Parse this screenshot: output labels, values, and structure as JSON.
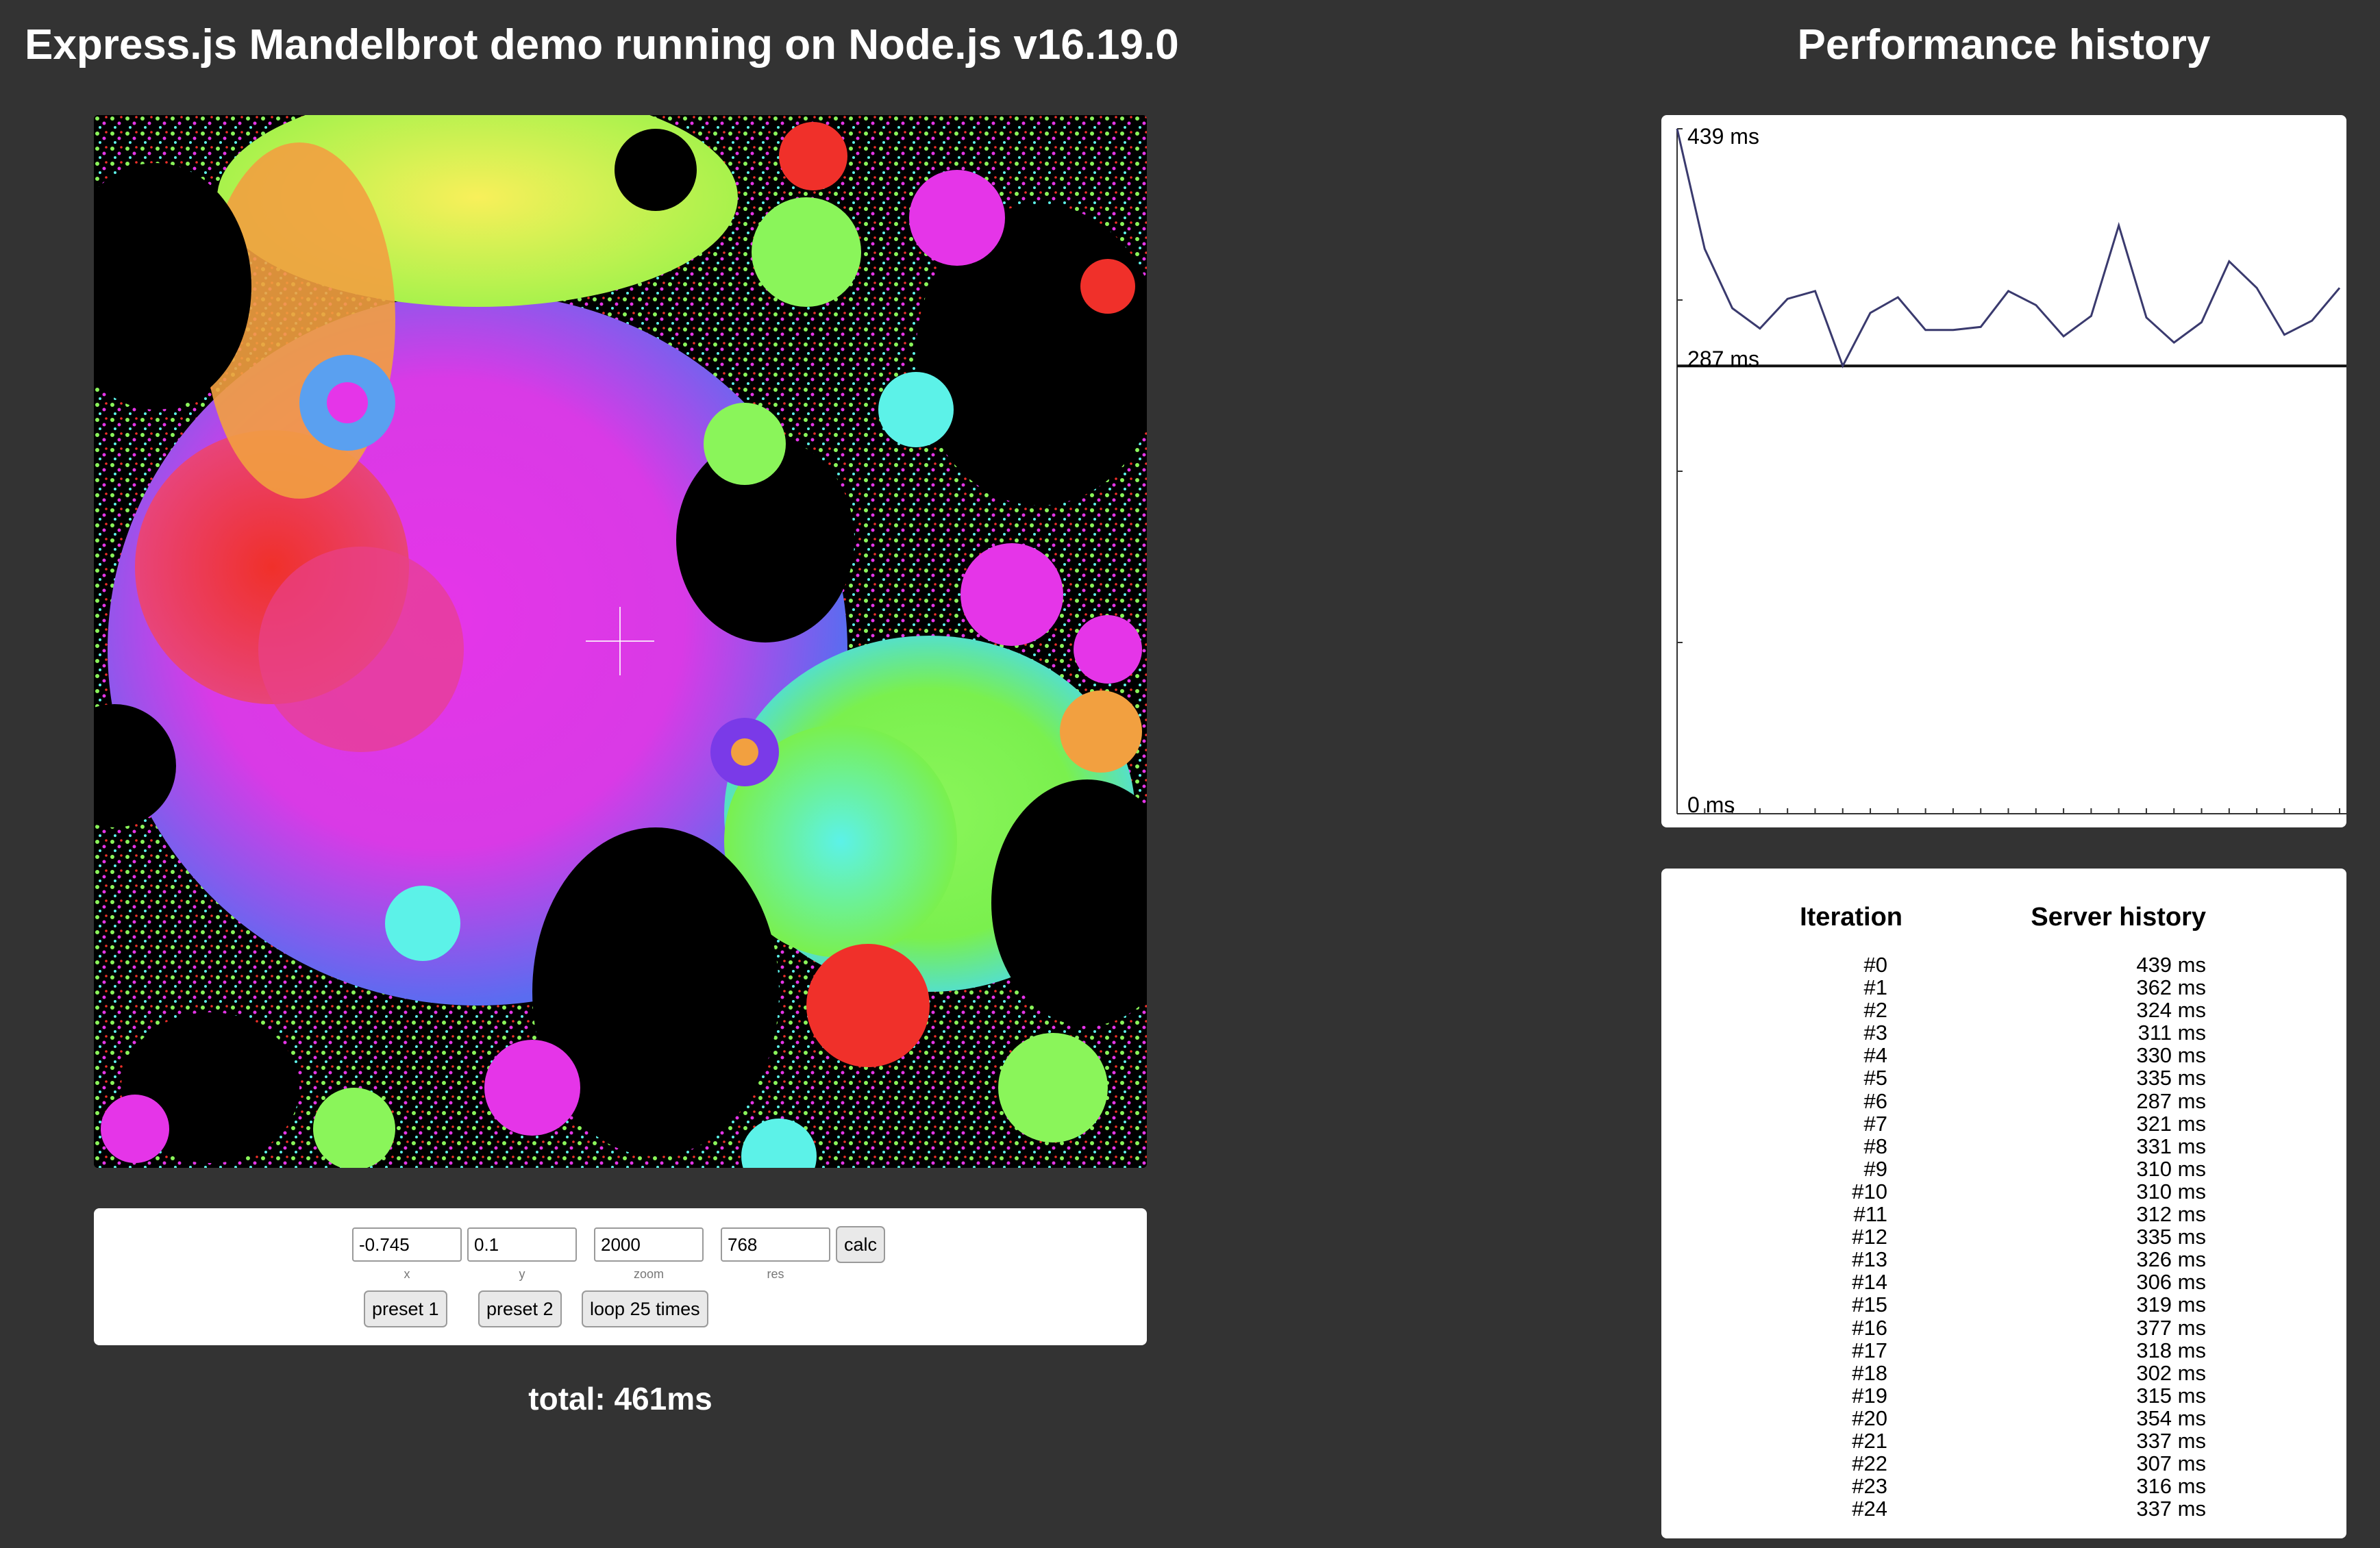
{
  "header": {
    "title": "Express.js Mandelbrot demo running on Node.js v16.19.0",
    "perf_title": "Performance history"
  },
  "controls": {
    "x": "-0.745",
    "y": "0.1",
    "zoom": "2000",
    "res": "768",
    "calc_label": "calc",
    "x_label": "x",
    "y_label": "y",
    "zoom_label": "zoom",
    "res_label": "res",
    "preset1_label": "preset 1",
    "preset2_label": "preset 2",
    "loop_label": "loop 25 times"
  },
  "total": "total: 461ms",
  "chart_data": {
    "type": "line",
    "x": [
      0,
      1,
      2,
      3,
      4,
      5,
      6,
      7,
      8,
      9,
      10,
      11,
      12,
      13,
      14,
      15,
      16,
      17,
      18,
      19,
      20,
      21,
      22,
      23,
      24
    ],
    "values": [
      439,
      362,
      324,
      311,
      330,
      335,
      287,
      321,
      331,
      310,
      310,
      312,
      335,
      326,
      306,
      319,
      377,
      318,
      302,
      315,
      354,
      337,
      307,
      316,
      337
    ],
    "ylim": [
      0,
      439
    ],
    "tick_labels": [
      "439 ms",
      "287 ms",
      "0 ms"
    ],
    "min_line": 287,
    "line_color": "#3a3a6e",
    "grid": false
  },
  "table": {
    "headers": [
      "Iteration",
      "Server history"
    ],
    "rows": [
      {
        "it": "#0",
        "ms": "439 ms"
      },
      {
        "it": "#1",
        "ms": "362 ms"
      },
      {
        "it": "#2",
        "ms": "324 ms"
      },
      {
        "it": "#3",
        "ms": "311 ms"
      },
      {
        "it": "#4",
        "ms": "330 ms"
      },
      {
        "it": "#5",
        "ms": "335 ms"
      },
      {
        "it": "#6",
        "ms": "287 ms"
      },
      {
        "it": "#7",
        "ms": "321 ms"
      },
      {
        "it": "#8",
        "ms": "331 ms"
      },
      {
        "it": "#9",
        "ms": "310 ms"
      },
      {
        "it": "#10",
        "ms": "310 ms"
      },
      {
        "it": "#11",
        "ms": "312 ms"
      },
      {
        "it": "#12",
        "ms": "335 ms"
      },
      {
        "it": "#13",
        "ms": "326 ms"
      },
      {
        "it": "#14",
        "ms": "306 ms"
      },
      {
        "it": "#15",
        "ms": "319 ms"
      },
      {
        "it": "#16",
        "ms": "377 ms"
      },
      {
        "it": "#17",
        "ms": "318 ms"
      },
      {
        "it": "#18",
        "ms": "302 ms"
      },
      {
        "it": "#19",
        "ms": "315 ms"
      },
      {
        "it": "#20",
        "ms": "354 ms"
      },
      {
        "it": "#21",
        "ms": "337 ms"
      },
      {
        "it": "#22",
        "ms": "307 ms"
      },
      {
        "it": "#23",
        "ms": "316 ms"
      },
      {
        "it": "#24",
        "ms": "337 ms"
      }
    ]
  },
  "colors": {
    "background": "#333333",
    "panel": "#ffffff",
    "chart_line": "#3a3a6e"
  }
}
